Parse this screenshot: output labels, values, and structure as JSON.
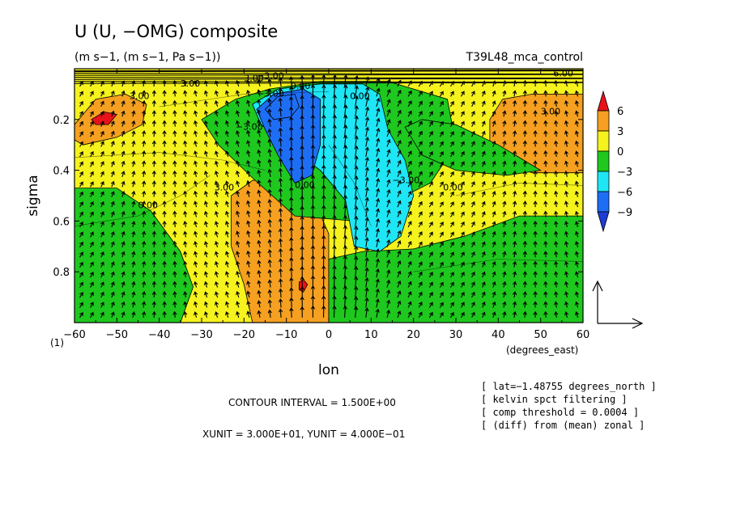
{
  "chart_data": {
    "type": "heatmap",
    "title": "U (U, −OMG) composite",
    "subtitle": "(m s−1, (m s−1, Pa s−1))",
    "run_label": "T39L48_mca_control",
    "xlabel": "lon",
    "x_unit_label": "(degrees_east)",
    "ylabel": "sigma",
    "corner_label": "(1)",
    "xlim": [
      -60,
      60
    ],
    "ylim": [
      1.0,
      0.0
    ],
    "x_ticks": [
      "−60",
      "−50",
      "−40",
      "−30",
      "−20",
      "−10",
      "0",
      "10",
      "20",
      "30",
      "40",
      "50",
      "60"
    ],
    "x_tick_values": [
      -60,
      -50,
      -40,
      -30,
      -20,
      -10,
      0,
      10,
      20,
      30,
      40,
      50,
      60
    ],
    "y_ticks": [
      "0.2",
      "0.4",
      "0.6",
      "0.8"
    ],
    "y_tick_values": [
      0.2,
      0.4,
      0.6,
      0.8
    ],
    "colorbar": {
      "levels": [
        "6",
        "3",
        "0",
        "−3",
        "−6",
        "−9"
      ],
      "colors": [
        "#e8131a",
        "#f5a020",
        "#f5f21e",
        "#1ec81e",
        "#1ee6f5",
        "#1e6ef5",
        "#1e3cd2"
      ]
    },
    "contour_labels": [
      "3.00",
      "3.00",
      "0.00",
      "0.00",
      "0.00",
      "0.00",
      "−3.00",
      "−3.00",
      "−3.00",
      "3.00",
      "3.00",
      "3.00",
      "6.00",
      "0.00",
      "−3.00"
    ],
    "reference_vector": true,
    "footer": {
      "contour_interval": "CONTOUR INTERVAL = 1.500E+00",
      "units": "XUNIT = 3.000E+01, YUNIT = 4.000E−01"
    },
    "info_lines": [
      "[ lat=−1.48755 degrees_north ]",
      "[ kelvin spct filtering ]",
      "[ comp threshold = 0.0004 ]",
      "[ (diff) from (mean) zonal ]"
    ],
    "shaded_regions": [
      {
        "level": "0 to 3",
        "lon": [
          -60,
          60
        ],
        "sigma": [
          0.0,
          1.0
        ]
      },
      {
        "level": "3 to 6",
        "lon": [
          -60,
          -43
        ],
        "sigma": [
          0.1,
          0.3
        ]
      },
      {
        "level": "above 6",
        "lon": [
          -56,
          -50
        ],
        "sigma": [
          0.17,
          0.22
        ]
      },
      {
        "level": "3 to 6",
        "lon": [
          38,
          60
        ],
        "sigma": [
          0.1,
          0.41
        ]
      },
      {
        "level": "3 to 6",
        "lon": [
          -23,
          0
        ],
        "sigma": [
          0.43,
          1.0
        ]
      },
      {
        "level": "above 6",
        "lon": [
          -7,
          -5
        ],
        "sigma": [
          0.83,
          0.88
        ]
      },
      {
        "level": "-3 to 0",
        "lon": [
          -60,
          -35
        ],
        "sigma": [
          0.47,
          1.0
        ]
      },
      {
        "level": "-3 to 0",
        "lon": [
          -8,
          60
        ],
        "sigma": [
          0.58,
          1.0
        ]
      },
      {
        "level": "-3 to 0",
        "lon": [
          -30,
          30
        ],
        "sigma": [
          0.05,
          0.6
        ]
      },
      {
        "level": "-3 to 0",
        "lon": [
          18,
          50
        ],
        "sigma": [
          0.2,
          0.42
        ]
      },
      {
        "level": "-6 to -3",
        "lon": [
          -18,
          20
        ],
        "sigma": [
          0.06,
          0.72
        ]
      },
      {
        "level": "-9 to -6",
        "lon": [
          -17,
          -2
        ],
        "sigma": [
          0.08,
          0.45
        ]
      },
      {
        "level": "-9 to -6",
        "lon": [
          -15,
          -7
        ],
        "sigma": [
          0.1,
          0.2
        ]
      }
    ]
  }
}
